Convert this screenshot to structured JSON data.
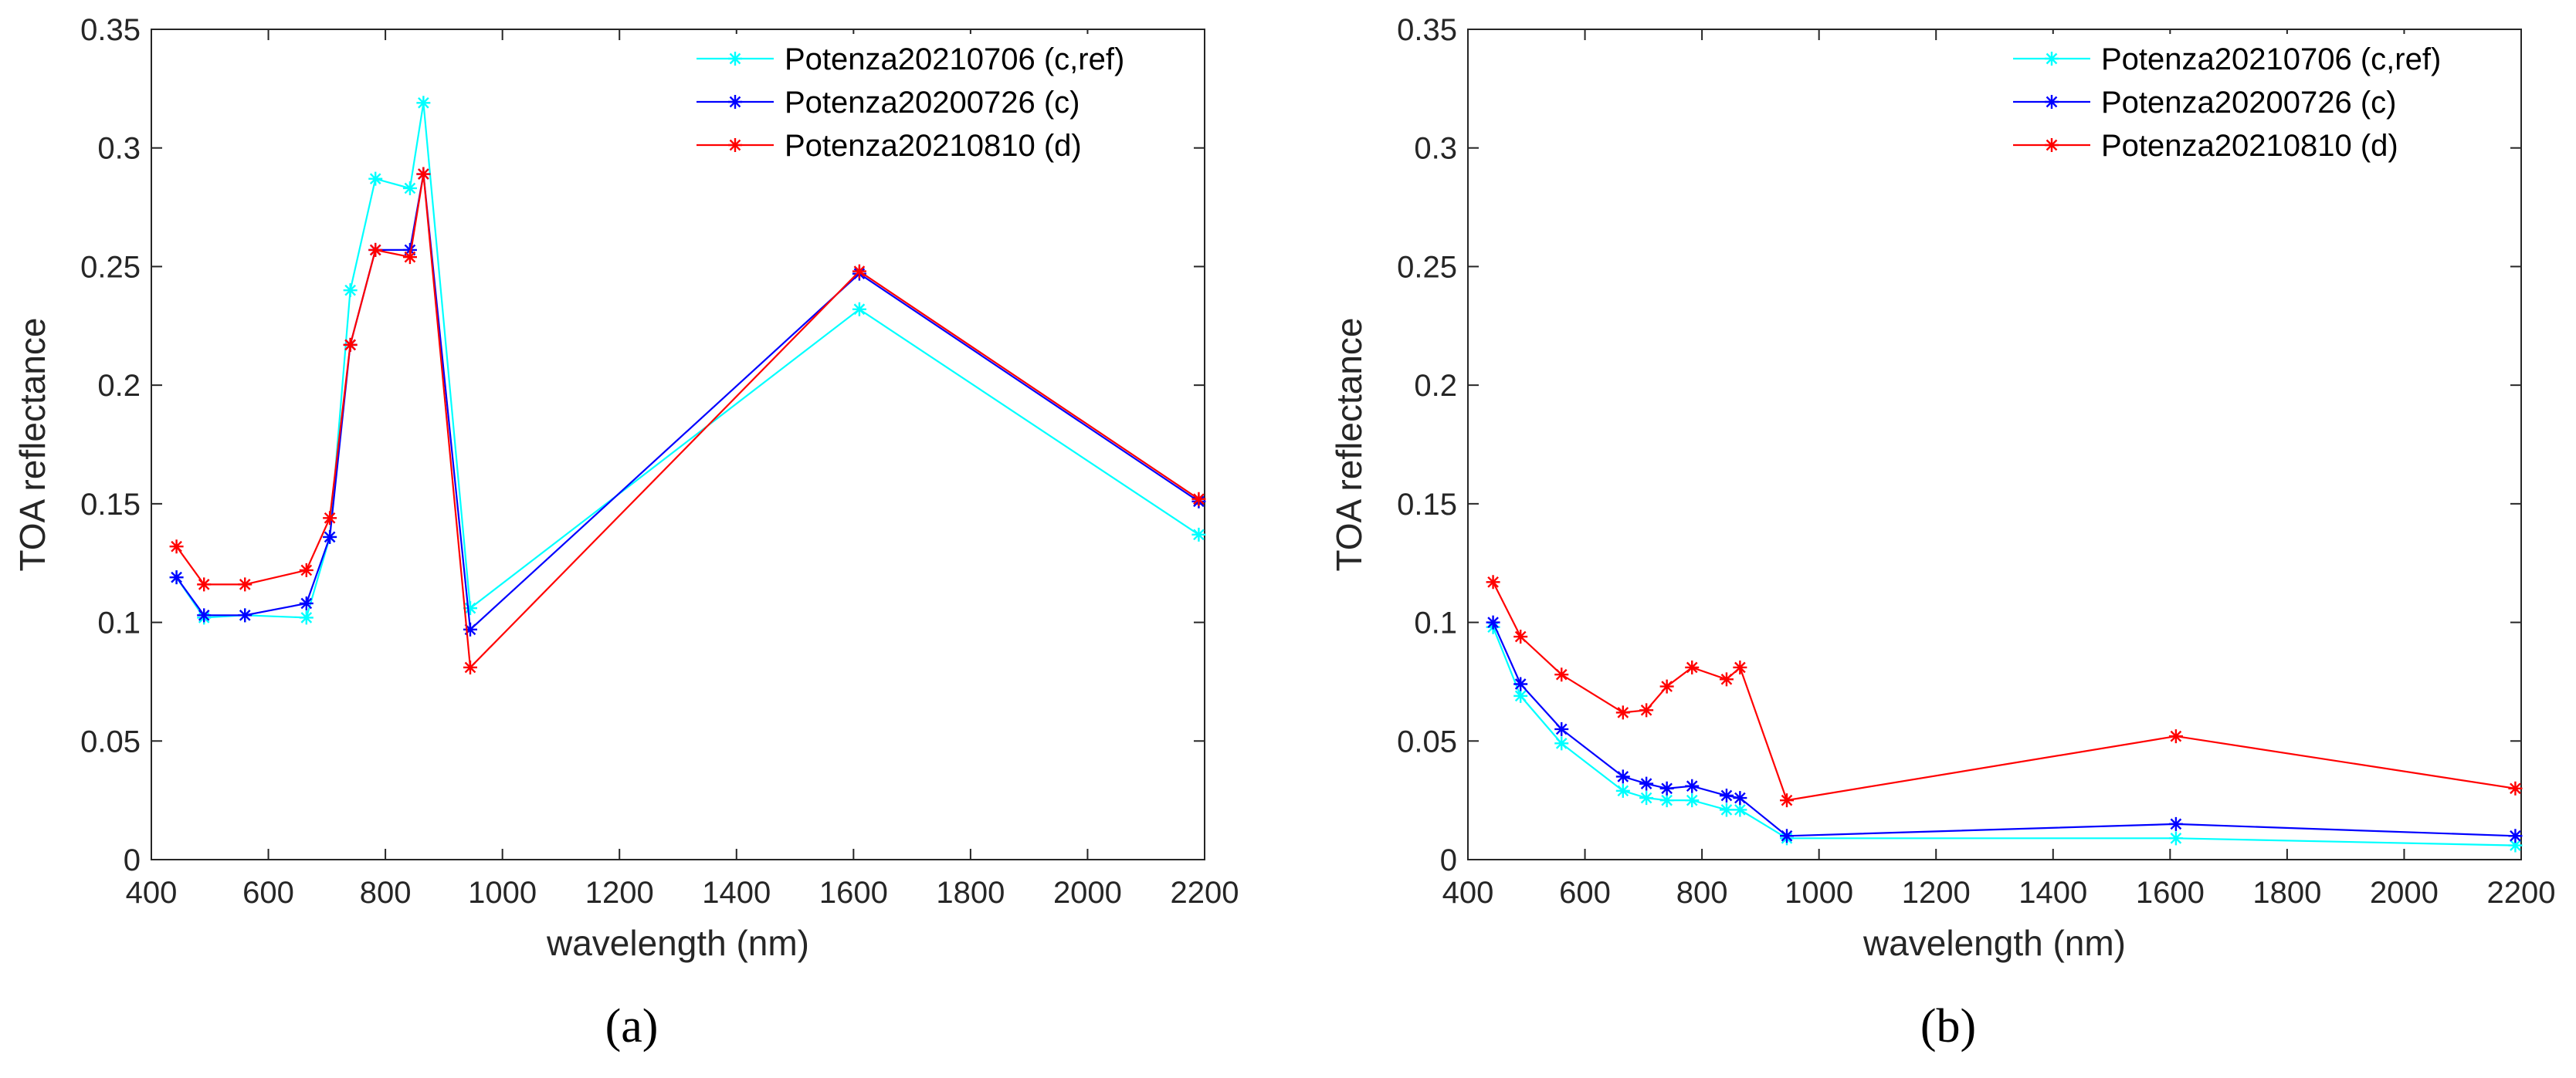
{
  "chart_data": [
    {
      "type": "line",
      "caption": "(a)",
      "title": "",
      "xlabel": "wavelength (nm)",
      "ylabel": "TOA reflectance",
      "xlim": [
        400,
        2200
      ],
      "ylim": [
        0,
        0.35
      ],
      "xticks": [
        "400",
        "600",
        "800",
        "1000",
        "1200",
        "1400",
        "1600",
        "1800",
        "2000",
        "2200"
      ],
      "yticks": [
        "0",
        "0.05",
        "0.1",
        "0.15",
        "0.2",
        "0.25",
        "0.3",
        "0.35"
      ],
      "grid": false,
      "legend_position": "top-right",
      "x": [
        443,
        490,
        560,
        665,
        705,
        740,
        783,
        842,
        865,
        945,
        1610,
        2190
      ],
      "series": [
        {
          "name": "Potenza20210706 (c,ref)",
          "color": "#00ffff",
          "values": [
            0.119,
            0.102,
            0.103,
            0.102,
            0.136,
            0.24,
            0.287,
            0.283,
            0.319,
            0.106,
            0.232,
            0.137
          ]
        },
        {
          "name": "Potenza20200726 (c)",
          "color": "#0000ff",
          "values": [
            0.119,
            0.103,
            0.103,
            0.108,
            0.136,
            0.217,
            0.257,
            0.257,
            0.289,
            0.097,
            0.247,
            0.151
          ]
        },
        {
          "name": "Potenza20210810 (d)",
          "color": "#ff0000",
          "values": [
            0.132,
            0.116,
            0.116,
            0.122,
            0.144,
            0.217,
            0.257,
            0.254,
            0.289,
            0.081,
            0.248,
            0.152
          ]
        }
      ]
    },
    {
      "type": "line",
      "caption": "(b)",
      "title": "",
      "xlabel": "wavelength (nm)",
      "ylabel": "TOA reflectance",
      "xlim": [
        400,
        2200
      ],
      "ylim": [
        0,
        0.35
      ],
      "xticks": [
        "400",
        "600",
        "800",
        "1000",
        "1200",
        "1400",
        "1600",
        "1800",
        "2000",
        "2200"
      ],
      "yticks": [
        "0",
        "0.05",
        "0.1",
        "0.15",
        "0.2",
        "0.25",
        "0.3",
        "0.35"
      ],
      "grid": false,
      "legend_position": "top-right",
      "x": [
        443,
        490,
        560,
        665,
        705,
        740,
        783,
        842,
        865,
        945,
        1610,
        2190
      ],
      "series": [
        {
          "name": "Potenza20210706 (c,ref)",
          "color": "#00ffff",
          "values": [
            0.098,
            0.069,
            0.049,
            0.029,
            0.026,
            0.025,
            0.025,
            0.021,
            0.021,
            0.009,
            0.009,
            0.006
          ]
        },
        {
          "name": "Potenza20200726 (c)",
          "color": "#0000ff",
          "values": [
            0.1,
            0.074,
            0.055,
            0.035,
            0.032,
            0.03,
            0.031,
            0.027,
            0.026,
            0.01,
            0.015,
            0.01
          ]
        },
        {
          "name": "Potenza20210810 (d)",
          "color": "#ff0000",
          "values": [
            0.117,
            0.094,
            0.078,
            0.062,
            0.063,
            0.073,
            0.081,
            0.076,
            0.081,
            0.025,
            0.052,
            0.03
          ]
        }
      ]
    }
  ]
}
